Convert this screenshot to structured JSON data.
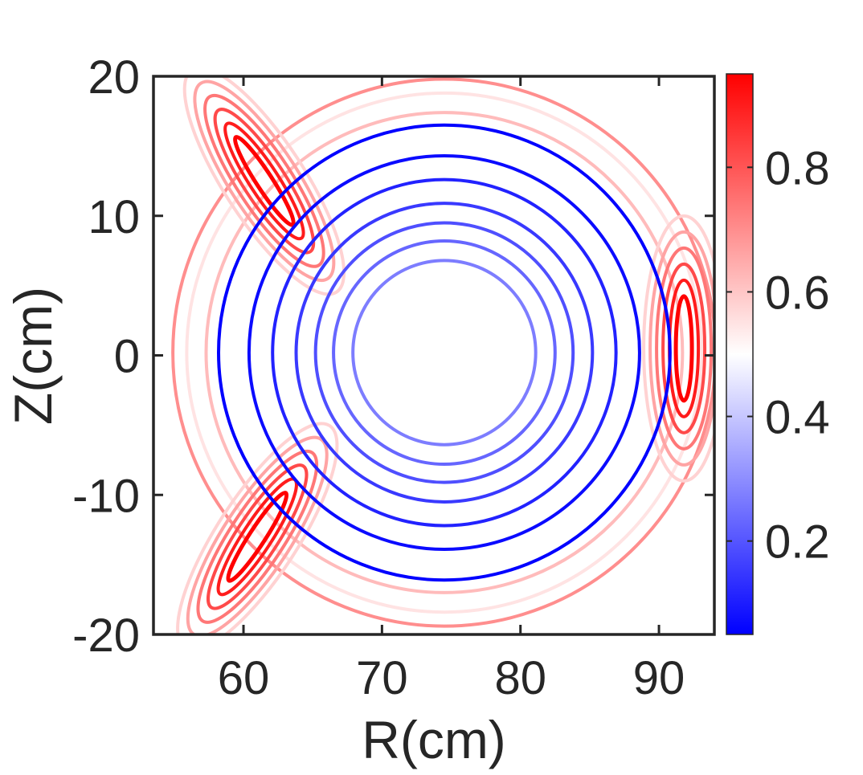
{
  "chart_data": {
    "type": "contour",
    "title": "",
    "xlabel": "R(cm)",
    "ylabel": "Z(cm)",
    "xlim": [
      53.5,
      94
    ],
    "ylim": [
      -20,
      20
    ],
    "x_ticks": [
      60,
      70,
      80,
      90
    ],
    "x_tick_labels": [
      "60",
      "70",
      "80",
      "90"
    ],
    "y_ticks": [
      20,
      10,
      0,
      -10,
      -20
    ],
    "y_tick_labels": [
      "20",
      "10",
      "0",
      "-10",
      "-20"
    ],
    "colorbar": {
      "range": [
        0.05,
        0.95
      ],
      "ticks": [
        0.2,
        0.4,
        0.6,
        0.8
      ],
      "tick_labels": [
        "0.2",
        "0.4",
        "0.6",
        "0.8"
      ],
      "colors": [
        "#0000ff",
        "#ffffff",
        "#ff0000"
      ]
    },
    "center": [
      74.5,
      0.2
    ],
    "nested_circles": [
      {
        "radius": 6.6,
        "level": 0.27
      },
      {
        "radius": 8.0,
        "level": 0.23
      },
      {
        "radius": 9.3,
        "level": 0.19
      },
      {
        "radius": 10.7,
        "level": 0.15
      },
      {
        "radius": 12.4,
        "level": 0.11
      },
      {
        "radius": 14.1,
        "level": 0.07
      },
      {
        "radius": 16.3,
        "level": 0.05
      }
    ],
    "island_chains": [
      {
        "name": "upper-left",
        "center": [
          61.5,
          12.5
        ],
        "angle_deg": 123,
        "levels": [
          0.95,
          0.9,
          0.82,
          0.74,
          0.66,
          0.58
        ]
      },
      {
        "name": "lower-left",
        "center": [
          61.0,
          -13.0
        ],
        "angle_deg": 57,
        "levels": [
          0.95,
          0.9,
          0.82,
          0.74,
          0.66,
          0.58
        ]
      },
      {
        "name": "right",
        "center": [
          91.8,
          0.5
        ],
        "angle_deg": 90,
        "levels": [
          0.95,
          0.9,
          0.82,
          0.74,
          0.66,
          0.58
        ]
      }
    ],
    "outer_rings": [
      {
        "radius": 17.2,
        "level": 0.62
      },
      {
        "radius": 18.6,
        "level": 0.55
      },
      {
        "radius": 19.6,
        "level": 0.7
      }
    ]
  }
}
